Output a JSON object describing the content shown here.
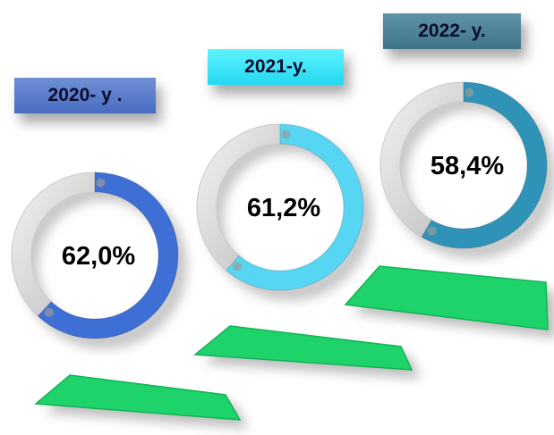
{
  "chart_data": {
    "type": "pie",
    "categories": [
      "2020- y .",
      "2021-y.",
      "2022- y."
    ],
    "values": [
      62.0,
      61.2,
      58.4
    ],
    "value_labels": [
      "62,0%",
      "61,2%",
      "58,4%"
    ],
    "colors": {
      "rings": [
        "#3d6fd4",
        "#56d6f2",
        "#2f93b8"
      ],
      "ring_remainder": "#d8d8d8",
      "platform": "#1ed46a",
      "label_backgrounds": [
        "#5b7fcf",
        "#33e4f8",
        "#4f879c"
      ]
    }
  }
}
